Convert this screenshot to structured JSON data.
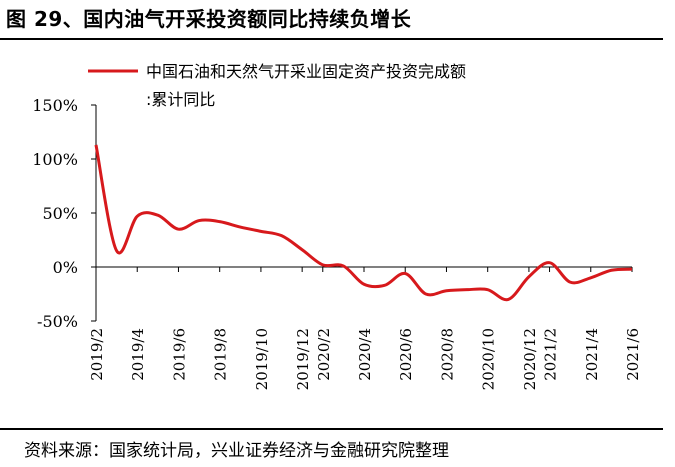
{
  "header": {
    "title": "图 29、国内油气开采投资额同比持续负增长"
  },
  "footer": {
    "source": "资料来源：国家统计局，兴业证券经济与金融研究院整理"
  },
  "chart_data": {
    "type": "line",
    "series": [
      {
        "name": "中国石油和天然气开采业固定资产投资完成额:累计同比",
        "color": "#d7191c",
        "values": [
          113,
          15,
          47,
          48,
          35,
          43,
          42,
          37,
          33,
          29,
          16,
          2,
          1,
          -16,
          -17,
          -6,
          -25,
          -22,
          -21,
          -21,
          -30,
          -9,
          4,
          -14,
          -10,
          -3,
          -2
        ]
      }
    ],
    "legend_line1": "中国石油和天然气开采业固定资产投资完成额",
    "legend_line2": ":累计同比",
    "x": [
      "2019/2",
      "2019/3",
      "2019/4",
      "2019/5",
      "2019/6",
      "2019/7",
      "2019/8",
      "2019/9",
      "2019/10",
      "2019/11",
      "2019/12",
      "2020/2",
      "2020/3",
      "2020/4",
      "2020/5",
      "2020/6",
      "2020/7",
      "2020/8",
      "2020/9",
      "2020/10",
      "2020/11",
      "2020/12",
      "2021/2",
      "2021/3",
      "2021/4",
      "2021/5",
      "2021/6"
    ],
    "x_tick_labels": [
      "2019/2",
      "2019/4",
      "2019/6",
      "2019/8",
      "2019/10",
      "2019/12",
      "2020/2",
      "2020/4",
      "2020/6",
      "2020/8",
      "2020/10",
      "2020/12",
      "2021/2",
      "2021/4",
      "2021/6"
    ],
    "y_tick_labels": [
      "150%",
      "100%",
      "50%",
      "0%",
      "-50%"
    ],
    "y_ticks": [
      150,
      100,
      50,
      0,
      -50
    ],
    "ylim": [
      -50,
      150
    ],
    "xlabel": "",
    "ylabel": "",
    "grid": false,
    "legend_position": "top"
  }
}
